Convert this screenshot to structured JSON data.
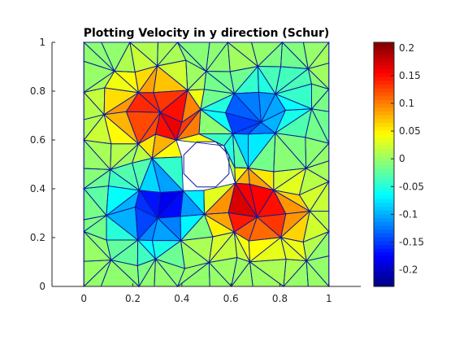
{
  "chart_data": {
    "type": "heatmap",
    "title": "Plotting Velocity in y direction (Schur)",
    "xlabel": "",
    "ylabel": "",
    "xlim": [
      -0.13,
      1.13
    ],
    "ylim": [
      0,
      1
    ],
    "x_ticks": [
      "0",
      "0.2",
      "0.4",
      "0.6",
      "0.8",
      "1"
    ],
    "x_tick_values": [
      0,
      0.2,
      0.4,
      0.6,
      0.8,
      1
    ],
    "y_ticks": [
      "0",
      "0.2",
      "0.4",
      "0.6",
      "0.8",
      "1"
    ],
    "y_tick_values": [
      0,
      0.2,
      0.4,
      0.6,
      0.8,
      1
    ],
    "colorbar": {
      "range": [
        -0.23,
        0.21
      ],
      "ticks": [
        "0.2",
        "0.15",
        "0.1",
        "0.05",
        "0",
        "-0.05",
        "-0.1",
        "-0.15",
        "-0.2"
      ],
      "tick_values": [
        0.2,
        0.15,
        0.1,
        0.05,
        0,
        -0.05,
        -0.1,
        -0.15,
        -0.2
      ],
      "colormap": "jet"
    },
    "domain": {
      "square": [
        0,
        1,
        0,
        1
      ],
      "hole_center": [
        0.5,
        0.5
      ],
      "hole_radius": 0.1,
      "hole_sides": 8
    },
    "field_features": [
      {
        "x": 0.36,
        "y": 0.68,
        "value": 0.15
      },
      {
        "x": 0.22,
        "y": 0.74,
        "value": 0.09
      },
      {
        "x": 0.65,
        "y": 0.32,
        "value": 0.15
      },
      {
        "x": 0.8,
        "y": 0.3,
        "value": 0.09
      },
      {
        "x": 0.35,
        "y": 0.35,
        "value": -0.16
      },
      {
        "x": 0.22,
        "y": 0.28,
        "value": -0.09
      },
      {
        "x": 0.65,
        "y": 0.68,
        "value": -0.13
      },
      {
        "x": 0.8,
        "y": 0.73,
        "value": -0.06
      }
    ]
  },
  "colors": {
    "mesh_edges": "#0b1c96",
    "axis": "#262626"
  }
}
